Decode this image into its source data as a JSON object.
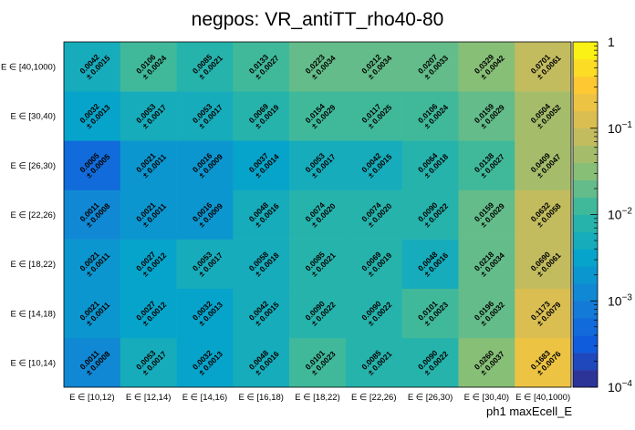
{
  "chart_data": {
    "type": "heatmap",
    "title": "negpos: VR_antiTT_rho40-80",
    "xlabel": "ph1 maxEcell_E",
    "ylabel": "",
    "x_categories": [
      "E ∈ [10,12)",
      "E ∈ [12,14)",
      "E ∈ [14,16)",
      "E ∈ [16,18)",
      "E ∈ [18,22)",
      "E ∈ [22,26)",
      "E ∈ [26,30)",
      "E ∈ [30,40)",
      "E ∈ [40,1000)"
    ],
    "y_categories": [
      "E ∈ [10,14)",
      "E ∈ [14,18)",
      "E ∈ [18,22)",
      "E ∈ [22,26)",
      "E ∈ [26,30)",
      "E ∈ [30,40)",
      "E ∈ [40,1000)"
    ],
    "z_scale": "log",
    "z_range": [
      0.0001,
      1
    ],
    "z_ticks": [
      {
        "value": 1,
        "base": "1",
        "exp": ""
      },
      {
        "value": 0.1,
        "base": "10",
        "exp": "−1"
      },
      {
        "value": 0.01,
        "base": "10",
        "exp": "−2"
      },
      {
        "value": 0.001,
        "base": "10",
        "exp": "−3"
      },
      {
        "value": 0.0001,
        "base": "10",
        "exp": "−4"
      }
    ],
    "values": [
      [
        0.0011,
        0.0053,
        0.0032,
        0.0048,
        0.0101,
        0.0085,
        0.009,
        0.026,
        0.1683
      ],
      [
        0.0021,
        0.0027,
        0.0032,
        0.0042,
        0.009,
        0.009,
        0.0101,
        0.0196,
        0.1173
      ],
      [
        0.0021,
        0.0027,
        0.0053,
        0.0058,
        0.0085,
        0.0069,
        0.0048,
        0.0218,
        0.069
      ],
      [
        0.0011,
        0.0021,
        0.0016,
        0.0048,
        0.0074,
        0.0074,
        0.009,
        0.0159,
        0.0632
      ],
      [
        0.0005,
        0.0021,
        0.0016,
        0.0037,
        0.0053,
        0.0042,
        0.0064,
        0.0138,
        0.0409
      ],
      [
        0.0032,
        0.0053,
        0.0053,
        0.0069,
        0.0154,
        0.0117,
        0.0106,
        0.0159,
        0.0504
      ],
      [
        0.0042,
        0.0106,
        0.0085,
        0.0133,
        0.0223,
        0.0212,
        0.0207,
        0.0329,
        0.0701
      ]
    ],
    "errors": [
      [
        0.0008,
        0.0017,
        0.0013,
        0.0016,
        0.0023,
        0.0021,
        0.0022,
        0.0037,
        0.0076
      ],
      [
        0.0011,
        0.0012,
        0.0013,
        0.0015,
        0.0022,
        0.0022,
        0.0023,
        0.0032,
        0.0079
      ],
      [
        0.0011,
        0.0012,
        0.0017,
        0.0018,
        0.0021,
        0.0019,
        0.0016,
        0.0034,
        0.0061
      ],
      [
        0.0008,
        0.0011,
        0.0009,
        0.0016,
        0.002,
        0.002,
        0.0022,
        0.0029,
        0.0058
      ],
      [
        0.0005,
        0.0011,
        0.0009,
        0.0014,
        0.0017,
        0.0015,
        0.0018,
        0.0027,
        0.0047
      ],
      [
        0.0013,
        0.0017,
        0.0017,
        0.0019,
        0.0029,
        0.0025,
        0.0024,
        0.0029,
        0.0052
      ],
      [
        0.0015,
        0.0024,
        0.0021,
        0.0027,
        0.0034,
        0.0034,
        0.0033,
        0.0042,
        0.0061
      ]
    ],
    "value_labels": [
      [
        "0.0011",
        "0.0053",
        "0.0032",
        "0.0048",
        "0.0101",
        "0.0085",
        "0.0090",
        "0.0260",
        "0.1683"
      ],
      [
        "0.0021",
        "0.0027",
        "0.0032",
        "0.0042",
        "0.0090",
        "0.0090",
        "0.0101",
        "0.0196",
        "0.1173"
      ],
      [
        "0.0021",
        "0.0027",
        "0.0053",
        "0.0058",
        "0.0085",
        "0.0069",
        "0.0048",
        "0.0218",
        "0.0690"
      ],
      [
        "0.0011",
        "0.0021",
        "0.0016",
        "0.0048",
        "0.0074",
        "0.0074",
        "0.0090",
        "0.0159",
        "0.0632"
      ],
      [
        "0.0005",
        "0.0021",
        "0.0016",
        "0.0037",
        "0.0053",
        "0.0042",
        "0.0064",
        "0.0138",
        "0.0409"
      ],
      [
        "0.0032",
        "0.0053",
        "0.0053",
        "0.0069",
        "0.0154",
        "0.0117",
        "0.0106",
        "0.0159",
        "0.0504"
      ],
      [
        "0.0042",
        "0.0106",
        "0.0085",
        "0.0133",
        "0.0223",
        "0.0212",
        "0.0207",
        "0.0329",
        "0.0701"
      ]
    ],
    "error_labels": [
      [
        "± 0.0008",
        "± 0.0017",
        "± 0.0013",
        "± 0.0016",
        "± 0.0023",
        "± 0.0021",
        "± 0.0022",
        "± 0.0037",
        "± 0.0076"
      ],
      [
        "± 0.0011",
        "± 0.0012",
        "± 0.0013",
        "± 0.0015",
        "± 0.0022",
        "± 0.0022",
        "± 0.0023",
        "± 0.0032",
        "± 0.0079"
      ],
      [
        "± 0.0011",
        "± 0.0012",
        "± 0.0017",
        "± 0.0018",
        "± 0.0021",
        "± 0.0019",
        "± 0.0016",
        "± 0.0034",
        "± 0.0061"
      ],
      [
        "± 0.0008",
        "± 0.0011",
        "± 0.0009",
        "± 0.0016",
        "± 0.0020",
        "± 0.0020",
        "± 0.0022",
        "± 0.0029",
        "± 0.0058"
      ],
      [
        "± 0.0005",
        "± 0.0011",
        "± 0.0009",
        "± 0.0014",
        "± 0.0017",
        "± 0.0015",
        "± 0.0018",
        "± 0.0027",
        "± 0.0047"
      ],
      [
        "± 0.0013",
        "± 0.0017",
        "± 0.0017",
        "± 0.0019",
        "± 0.0029",
        "± 0.0025",
        "± 0.0024",
        "± 0.0029",
        "± 0.0052"
      ],
      [
        "± 0.0015",
        "± 0.0024",
        "± 0.0021",
        "± 0.0027",
        "± 0.0034",
        "± 0.0034",
        "± 0.0033",
        "± 0.0042",
        "± 0.0061"
      ]
    ],
    "colormap": "parula",
    "colormap_stops": [
      "#352a87",
      "#0f5cdd",
      "#1481d6",
      "#06a4ca",
      "#2eb7a4",
      "#87bf77",
      "#d1bb59",
      "#fec832",
      "#f9fb0e"
    ],
    "legend": "colorbar-right",
    "grid": false
  }
}
